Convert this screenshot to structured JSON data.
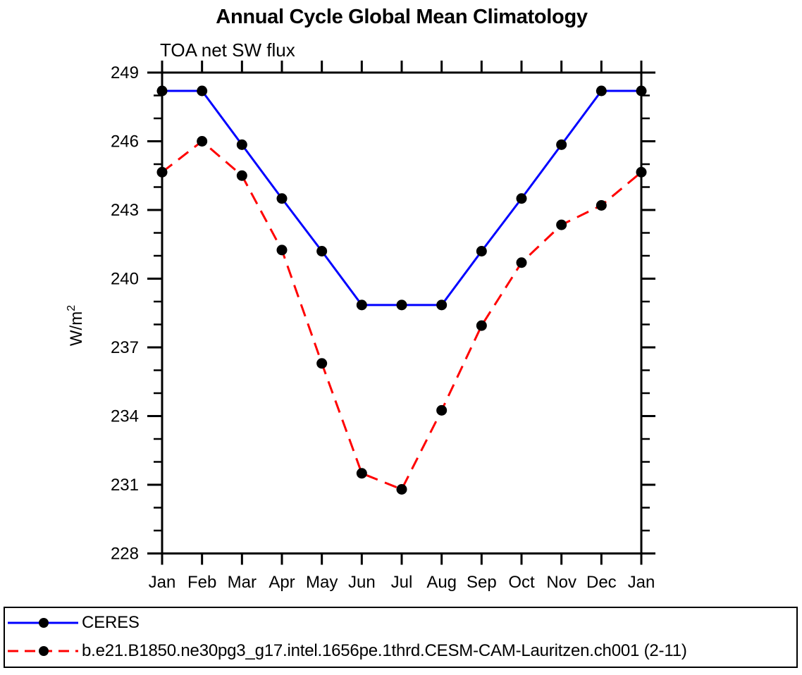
{
  "chart_data": {
    "type": "line",
    "title": "Annual Cycle Global Mean Climatology",
    "subtitle": "TOA net SW flux",
    "ylabel": "W/m²",
    "xlabel": "",
    "categories": [
      "Jan",
      "Feb",
      "Mar",
      "Apr",
      "May",
      "Jun",
      "Jul",
      "Aug",
      "Sep",
      "Oct",
      "Nov",
      "Dec",
      "Jan"
    ],
    "ylim": [
      228,
      249
    ],
    "yticks_major": [
      228,
      231,
      234,
      237,
      240,
      243,
      246,
      249
    ],
    "ytick_minor_step": 1,
    "grid": "off",
    "legend_position": "bottom",
    "frame_color": "#000000",
    "marker_color": "#000000",
    "series": [
      {
        "name": "CERES",
        "color": "#0000ff",
        "style": "solid",
        "marker": "circle",
        "values": [
          248.2,
          248.2,
          245.85,
          243.5,
          241.2,
          238.85,
          238.85,
          238.85,
          241.2,
          243.5,
          245.85,
          248.2,
          248.2
        ]
      },
      {
        "name": "b.e21.B1850.ne30pg3_g17.intel.1656pe.1thrd.CESM-CAM-Lauritzen.ch001 (2-11)",
        "color": "#ff0000",
        "style": "dashed",
        "marker": "circle",
        "values": [
          244.65,
          246.0,
          244.5,
          241.25,
          236.3,
          231.5,
          230.8,
          234.25,
          237.95,
          240.7,
          242.35,
          243.2,
          244.65
        ]
      }
    ]
  }
}
